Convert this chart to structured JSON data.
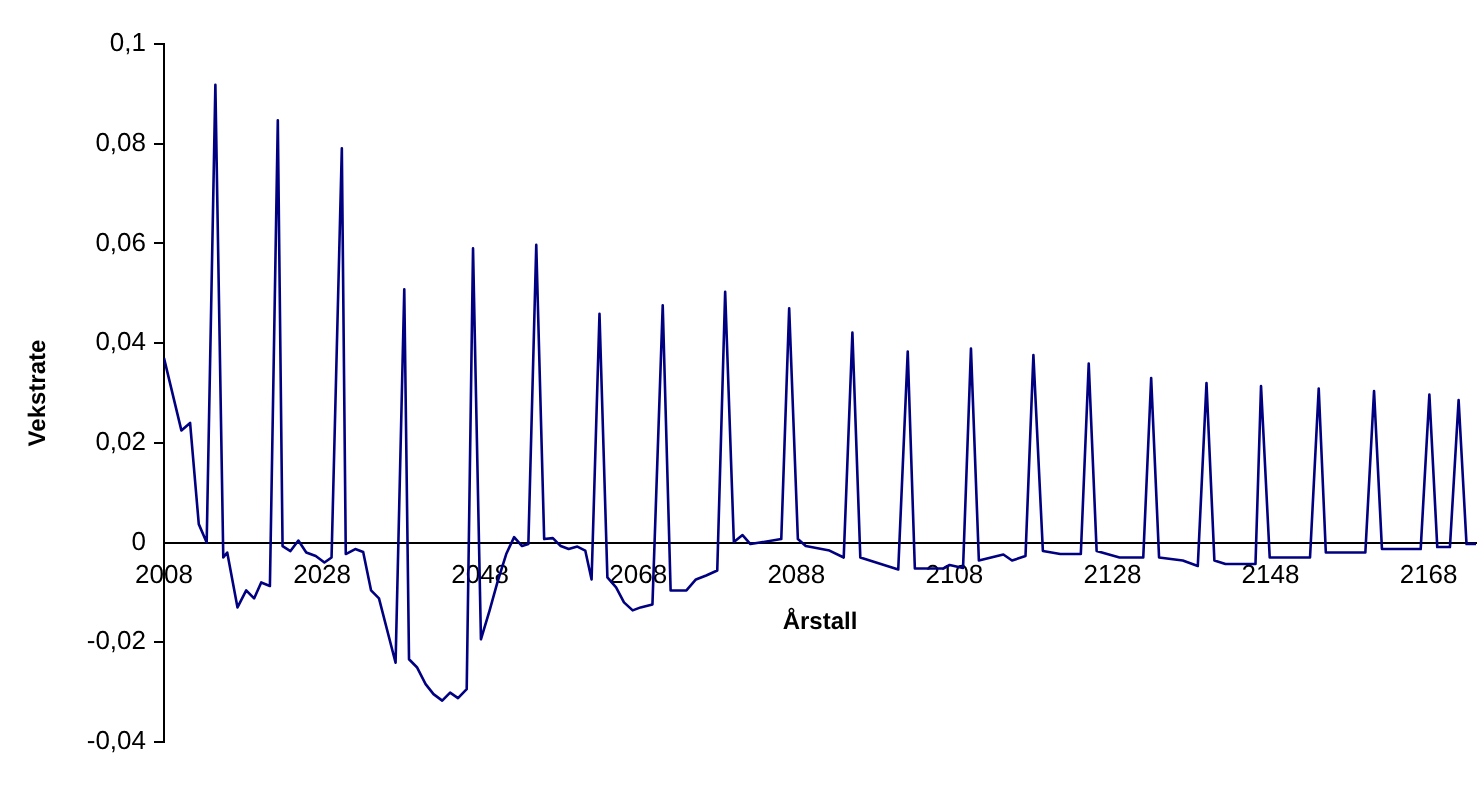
{
  "chart_data": {
    "type": "line",
    "xlabel": "Årstall",
    "ylabel": "Vekstrate",
    "x": [
      2008,
      2010.2,
      2011.3,
      2012.4,
      2013.4,
      2014.5,
      2015.5,
      2016,
      2017.3,
      2018.4,
      2019.4,
      2020.3,
      2021.4,
      2022.4,
      2023,
      2024,
      2025,
      2026,
      2027.2,
      2028.3,
      2029.2,
      2030.5,
      2031,
      2032.2,
      2033.2,
      2034.2,
      2035.2,
      2037.3,
      2038.4,
      2039,
      2040,
      2041.1,
      2042.1,
      2043.2,
      2044.2,
      2045.2,
      2046.3,
      2047.1,
      2048.1,
      2049.2,
      2050.2,
      2051.3,
      2052.3,
      2053.3,
      2054.1,
      2055.1,
      2056.1,
      2057.2,
      2058.2,
      2059.2,
      2060.3,
      2061.3,
      2062.1,
      2063.1,
      2064.1,
      2065.2,
      2066.2,
      2067.3,
      2068.3,
      2069.8,
      2071.1,
      2072.1,
      2074.1,
      2075.3,
      2076.6,
      2078,
      2079,
      2080.1,
      2081.2,
      2082.2,
      2083.4,
      2086.1,
      2087.1,
      2088.2,
      2089.2,
      2092.2,
      2094,
      2095.1,
      2096.1,
      2100.9,
      2102.1,
      2103,
      2106.6,
      2107.4,
      2109.1,
      2110.1,
      2111.1,
      2114.2,
      2115.3,
      2117,
      2118,
      2119.2,
      2121.4,
      2124,
      2125,
      2126,
      2128.9,
      2131.9,
      2132.9,
      2133.9,
      2136.9,
      2138.8,
      2139.9,
      2140.9,
      2142.3,
      2146.1,
      2146.8,
      2147.9,
      2153,
      2154.1,
      2155,
      2160,
      2161.1,
      2162.1,
      2167,
      2168.1,
      2169.1,
      2170.7,
      2171.8,
      2172.8,
      2174
    ],
    "series": [
      {
        "color": "#000080",
        "values": [
          0.037,
          0.0225,
          0.024,
          0.0037,
          0,
          0.0918,
          -0.003,
          -0.002,
          -0.013,
          -0.0096,
          -0.0112,
          -0.008,
          -0.0087,
          0.0847,
          -0.0007,
          -0.0017,
          0.0004,
          -0.002,
          -0.0027,
          -0.004,
          -0.003,
          0.0791,
          -0.0023,
          -0.0013,
          -0.0019,
          -0.0096,
          -0.0112,
          -0.0241,
          0.0508,
          -0.0234,
          -0.025,
          -0.0284,
          -0.0304,
          -0.0317,
          -0.0301,
          -0.0312,
          -0.0294,
          0.059,
          -0.0194,
          -0.0136,
          -0.0079,
          -0.0023,
          0.0011,
          -0.0007,
          -0.0003,
          0.0597,
          0.0007,
          0.0009,
          -0.0007,
          -0.0013,
          -0.0008,
          -0.0016,
          -0.0074,
          0.0459,
          -0.007,
          -0.009,
          -0.012,
          -0.0136,
          -0.013,
          -0.0124,
          0.0476,
          -0.0096,
          -0.0096,
          -0.0074,
          -0.0066,
          -0.0056,
          0.0503,
          0.0001,
          0.0015,
          -0.0003,
          0,
          0.0007,
          0.047,
          0.0007,
          -0.0007,
          -0.0016,
          -0.003,
          0.0421,
          -0.003,
          -0.0054,
          0.0383,
          -0.0052,
          -0.0052,
          -0.0045,
          -0.0051,
          0.0389,
          -0.0036,
          -0.0024,
          -0.0036,
          -0.0027,
          0.0376,
          -0.0017,
          -0.0023,
          -0.0023,
          0.0359,
          -0.0017,
          -0.003,
          -0.003,
          0.033,
          -0.003,
          -0.0036,
          -0.0047,
          0.032,
          -0.0036,
          -0.0043,
          -0.0043,
          0.0314,
          -0.003,
          -0.003,
          0.0309,
          -0.002,
          -0.002,
          0.0304,
          -0.0013,
          -0.0013,
          0.0297,
          -0.0009,
          -0.0009,
          0.0286,
          -0.0003,
          -0.0003
        ]
      }
    ],
    "xlim": [
      2008,
      2174
    ],
    "xticks": [
      2008,
      2028,
      2048,
      2068,
      2088,
      2108,
      2128,
      2148,
      2168
    ],
    "ylim": [
      -0.04,
      0.1
    ],
    "yticks": [
      {
        "value": -0.04,
        "label": "-0,04"
      },
      {
        "value": -0.02,
        "label": "-0,02"
      },
      {
        "value": 0,
        "label": "0"
      },
      {
        "value": 0.02,
        "label": "0,02"
      },
      {
        "value": 0.04,
        "label": "0,04"
      },
      {
        "value": 0.06,
        "label": "0,06"
      },
      {
        "value": 0.08,
        "label": "0,08"
      },
      {
        "value": 0.1,
        "label": "0,1"
      }
    ],
    "grid": false,
    "legend": false,
    "marker": "none",
    "line_style": "solid"
  }
}
